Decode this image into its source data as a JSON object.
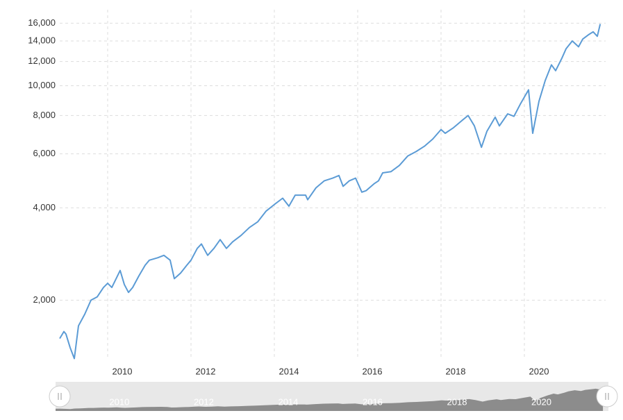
{
  "chart_data": {
    "type": "line",
    "log_scale": true,
    "grid": true,
    "x": [
      2008.85,
      2008.95,
      2009.0,
      2009.1,
      2009.2,
      2009.3,
      2009.45,
      2009.6,
      2009.75,
      2009.9,
      2010.0,
      2010.1,
      2010.3,
      2010.4,
      2010.5,
      2010.6,
      2010.75,
      2010.9,
      2011.0,
      2011.2,
      2011.35,
      2011.5,
      2011.6,
      2011.75,
      2011.9,
      2012.0,
      2012.15,
      2012.25,
      2012.4,
      2012.55,
      2012.7,
      2012.85,
      2013.0,
      2013.2,
      2013.4,
      2013.6,
      2013.8,
      2014.0,
      2014.2,
      2014.35,
      2014.5,
      2014.75,
      2014.8,
      2015.0,
      2015.2,
      2015.4,
      2015.55,
      2015.65,
      2015.8,
      2015.95,
      2016.1,
      2016.2,
      2016.4,
      2016.5,
      2016.6,
      2016.8,
      2017.0,
      2017.2,
      2017.4,
      2017.6,
      2017.8,
      2018.0,
      2018.1,
      2018.3,
      2018.5,
      2018.65,
      2018.8,
      2018.97,
      2019.1,
      2019.3,
      2019.4,
      2019.6,
      2019.75,
      2019.9,
      2020.1,
      2020.2,
      2020.35,
      2020.5,
      2020.65,
      2020.75,
      2020.9,
      2021.0,
      2021.15,
      2021.3,
      2021.4,
      2021.55,
      2021.65,
      2021.75,
      2021.82
    ],
    "series": [
      {
        "color": "#5b9bd5",
        "values": [
          1500,
          1580,
          1550,
          1400,
          1290,
          1650,
          1800,
          2000,
          2050,
          2200,
          2270,
          2200,
          2500,
          2250,
          2120,
          2200,
          2400,
          2600,
          2700,
          2750,
          2800,
          2700,
          2350,
          2450,
          2600,
          2700,
          2950,
          3050,
          2800,
          2950,
          3150,
          2950,
          3100,
          3250,
          3450,
          3600,
          3900,
          4100,
          4300,
          4050,
          4400,
          4400,
          4250,
          4650,
          4900,
          5000,
          5100,
          4700,
          4900,
          5000,
          4500,
          4550,
          4800,
          4900,
          5200,
          5250,
          5500,
          5900,
          6100,
          6350,
          6700,
          7200,
          7000,
          7300,
          7700,
          8000,
          7400,
          6300,
          7100,
          7900,
          7400,
          8100,
          7950,
          8700,
          9700,
          7000,
          8900,
          10400,
          11700,
          11200,
          12300,
          13200,
          14000,
          13400,
          14200,
          14700,
          15000,
          14500,
          15900
        ]
      }
    ],
    "xlim": [
      2008.85,
      2021.95
    ],
    "xticks": [
      2010,
      2012,
      2014,
      2016,
      2018,
      2020
    ],
    "ylim": [
      1280,
      17700
    ],
    "yticks": [
      {
        "value": 2000,
        "label": "2,000"
      },
      {
        "value": 4000,
        "label": "4,000"
      },
      {
        "value": 6000,
        "label": "6,000"
      },
      {
        "value": 8000,
        "label": "8,000"
      },
      {
        "value": 10000,
        "label": "10,000"
      },
      {
        "value": 12000,
        "label": "12,000"
      },
      {
        "value": 14000,
        "label": "14,000"
      },
      {
        "value": 16000,
        "label": "16,000"
      }
    ]
  }
}
